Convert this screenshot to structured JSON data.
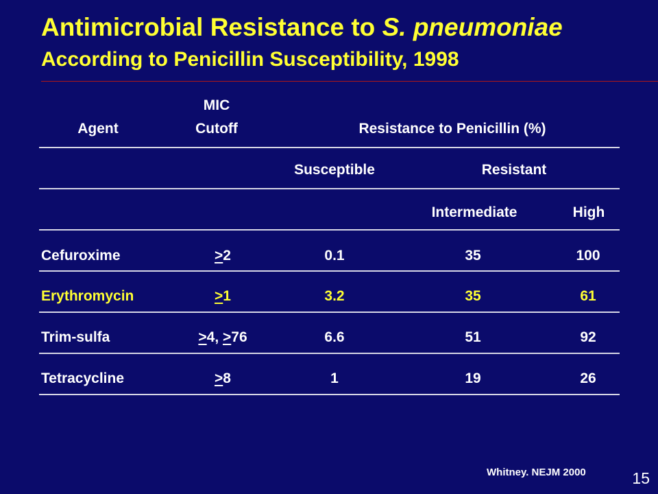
{
  "slide": {
    "title_prefix": "Antimicrobial Resistance to ",
    "title_italic": "S. pneumoniae",
    "subtitle": "According to Penicillin Susceptibility, 1998",
    "footer": "Whitney. NEJM 2000",
    "page_number": "15"
  },
  "colors": {
    "background": "#0b0b6b",
    "title": "#ffff33",
    "highlight_row": "#ffff33",
    "rule": "#b01818"
  },
  "table": {
    "headers": {
      "agent": "Agent",
      "mic_line1": "MIC",
      "mic_line2": "Cutoff",
      "resistance": "Resistance to Penicillin (%)",
      "susceptible": "Susceptible",
      "resistant": "Resistant",
      "intermediate": "Intermediate",
      "high": "High"
    },
    "rows": [
      {
        "agent": "Cefuroxime",
        "cutoff": "≥2",
        "susceptible": "0.1",
        "intermediate": "35",
        "high": "100"
      },
      {
        "agent": "Erythromycin",
        "cutoff": "≥1",
        "susceptible": "3.2",
        "intermediate": "35",
        "high": "61"
      },
      {
        "agent": "Trim-sulfa",
        "cutoff": "≥4, ≥76",
        "susceptible": "6.6",
        "intermediate": "51",
        "high": "92"
      },
      {
        "agent": "Tetracycline",
        "cutoff": "≥8",
        "susceptible": "1",
        "intermediate": "19",
        "high": "26"
      }
    ]
  }
}
